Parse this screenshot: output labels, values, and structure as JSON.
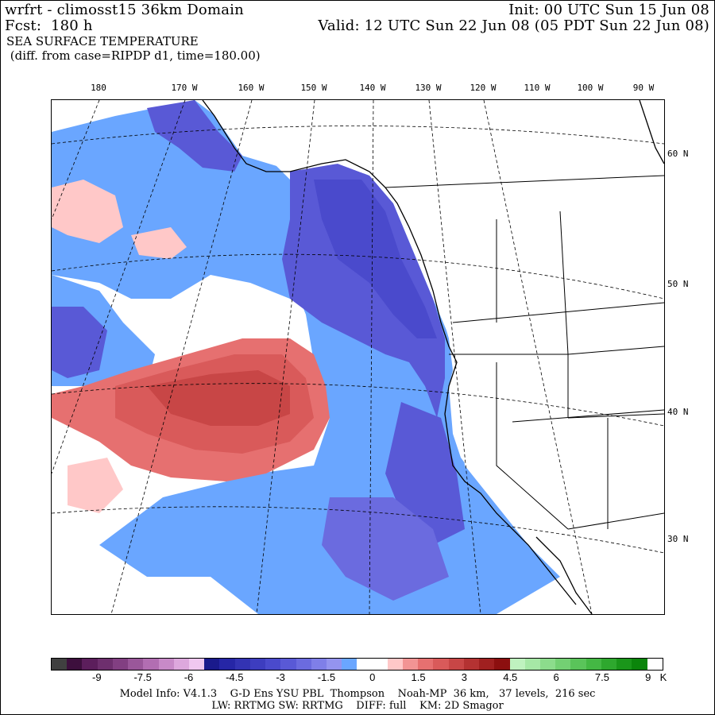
{
  "header": {
    "model_title": "wrfrt - climosst15 36km Domain",
    "init": "Init: 00 UTC Sun 15 Jun 08",
    "fcst": "Fcst:  180 h",
    "valid": "Valid: 12 UTC Sun 22 Jun 08 (05 PDT Sun 22 Jun 08)",
    "field": "SEA SURFACE TEMPERATURE",
    "diff": " (diff. from case=RIPDP d1, time=180.00)"
  },
  "map": {
    "lon_labels": [
      "180",
      "170 W",
      "160 W",
      "150 W",
      "140 W",
      "130 W",
      "120 W",
      "110 W",
      "100 W",
      "90 W"
    ],
    "lat_labels": [
      "60 N",
      "50 N",
      "40 N",
      "30 N"
    ],
    "field_regions": [
      {
        "region": "cold-anomaly-gulf-of-alaska",
        "level": "-4.5"
      },
      {
        "region": "cold-anomaly-west-coast",
        "level": "-3"
      },
      {
        "region": "warm-anomaly-central-north-pacific",
        "level": "3"
      }
    ]
  },
  "colorbar": {
    "colors": [
      "#404040",
      "#3d0f3d",
      "#5c1e5c",
      "#6e2f6e",
      "#823f82",
      "#9a579a",
      "#b26eb2",
      "#c88ac8",
      "#dda8dd",
      "#f0c8f0",
      "#1a1a8c",
      "#2626a6",
      "#3333b3",
      "#3d3dbf",
      "#4a4acc",
      "#5959d6",
      "#6b6bdf",
      "#7f7fe8",
      "#9494ef",
      "#6aa6ff",
      "#ffffff",
      "#ffffff",
      "#ffc8c8",
      "#f29494",
      "#e67070",
      "#d95a5a",
      "#c84646",
      "#b43232",
      "#a02020",
      "#8c0f0f",
      "#bff2bf",
      "#a6e8a6",
      "#8cdc8c",
      "#73d073",
      "#5ac45a",
      "#44b844",
      "#2ea82e",
      "#1a961a",
      "#0b850b",
      "#ffffff"
    ],
    "tick_labels": [
      "-9",
      "-7.5",
      "-6",
      "-4.5",
      "-3",
      "-1.5",
      "0",
      "1.5",
      "3",
      "4.5",
      "6",
      "7.5",
      "9"
    ],
    "unit": "K"
  },
  "footer": {
    "line1": "Model Info: V4.1.3    G-D Ens YSU PBL  Thompson    Noah-MP  36 km,   37 levels,  216 sec",
    "line2": "LW: RRTMG SW: RRTMG    DIFF: full    KM: 2D Smagor"
  }
}
